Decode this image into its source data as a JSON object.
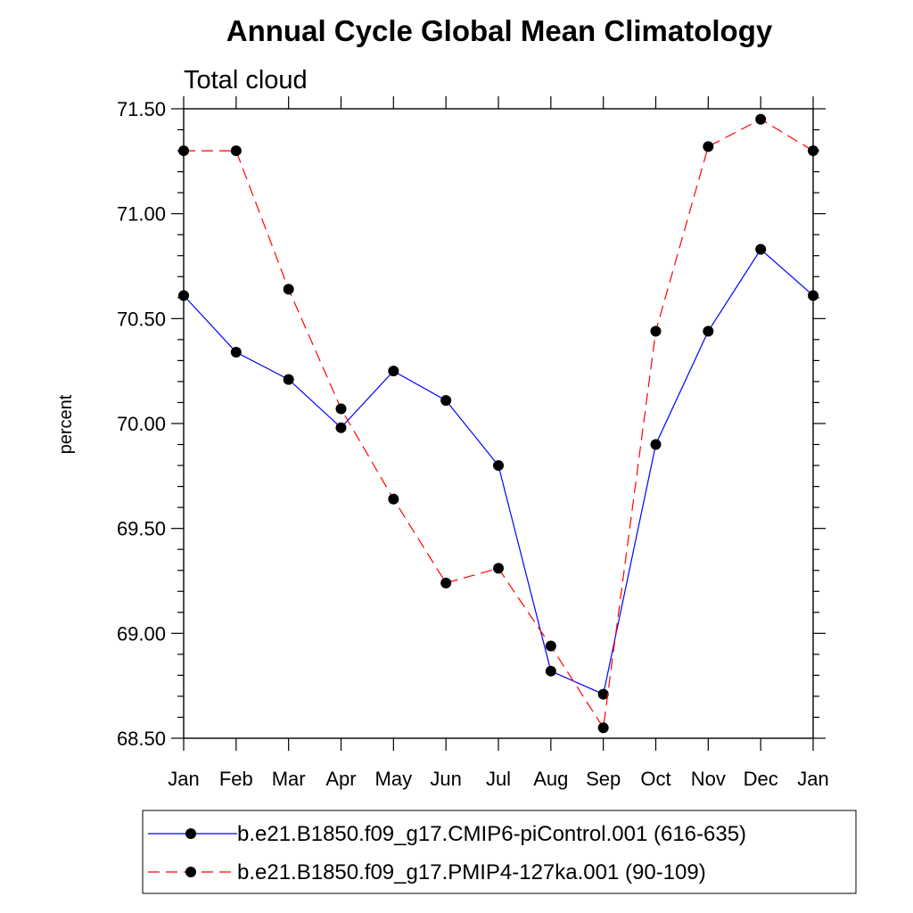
{
  "chart_data": {
    "type": "line",
    "title": "Annual Cycle Global Mean Climatology",
    "subtitle": "Total cloud",
    "xlabel": "",
    "ylabel": "percent",
    "categories": [
      "Jan",
      "Feb",
      "Mar",
      "Apr",
      "May",
      "Jun",
      "Jul",
      "Aug",
      "Sep",
      "Oct",
      "Nov",
      "Dec",
      "Jan"
    ],
    "ylim": [
      68.5,
      71.5
    ],
    "yticks": [
      "68.50",
      "69.00",
      "69.50",
      "70.00",
      "70.50",
      "71.00",
      "71.50"
    ],
    "grid": false,
    "legend_position": "bottom",
    "series": [
      {
        "name": "b.e21.B1850.f09_g17.CMIP6-piControl.001 (616-635)",
        "color": "#0000ff",
        "line_style": "solid",
        "values": [
          70.61,
          70.34,
          70.21,
          69.98,
          70.25,
          70.11,
          69.8,
          68.82,
          68.71,
          69.9,
          70.44,
          70.83,
          70.61
        ]
      },
      {
        "name": "b.e21.B1850.f09_g17.PMIP4-127ka.001 (90-109)",
        "color": "#ff0000",
        "line_style": "dashed",
        "values": [
          71.3,
          71.3,
          70.64,
          70.07,
          69.64,
          69.24,
          69.31,
          68.94,
          68.55,
          70.44,
          71.32,
          71.45,
          71.3
        ]
      }
    ]
  }
}
